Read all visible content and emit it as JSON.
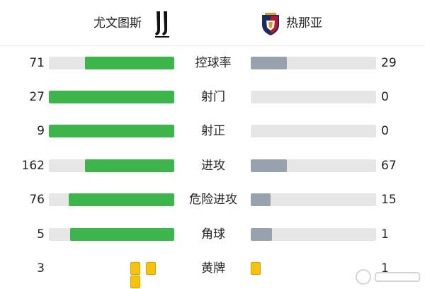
{
  "header": {
    "home_team": "尤文图斯",
    "away_team": "热那亚"
  },
  "colors": {
    "home_bar": "#3cb64a",
    "away_bar": "#97a2ae",
    "track": "#e6e6e6",
    "yellow_card": "#f6c30a"
  },
  "stats": [
    {
      "label": "控球率",
      "home": "71",
      "away": "29",
      "home_ratio": 0.71,
      "away_ratio": 0.29
    },
    {
      "label": "射门",
      "home": "27",
      "away": "0",
      "home_ratio": 1.0,
      "away_ratio": 0.0
    },
    {
      "label": "射正",
      "home": "9",
      "away": "0",
      "home_ratio": 1.0,
      "away_ratio": 0.0
    },
    {
      "label": "进攻",
      "home": "162",
      "away": "67",
      "home_ratio": 0.71,
      "away_ratio": 0.29
    },
    {
      "label": "危险进攻",
      "home": "76",
      "away": "15",
      "home_ratio": 0.84,
      "away_ratio": 0.16
    },
    {
      "label": "角球",
      "home": "5",
      "away": "1",
      "home_ratio": 0.83,
      "away_ratio": 0.17
    }
  ],
  "yellow_cards": {
    "label": "黄牌",
    "home": "3",
    "away": "1",
    "home_count": 3,
    "away_count": 1
  }
}
